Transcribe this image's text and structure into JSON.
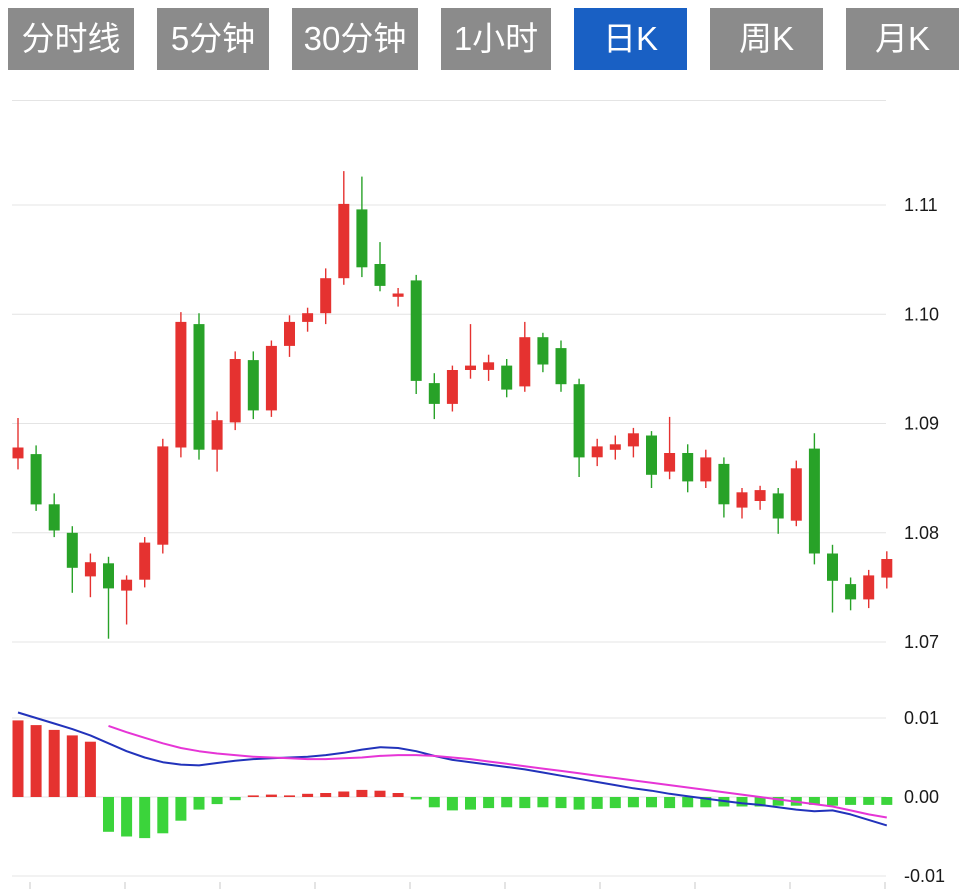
{
  "tabs": [
    {
      "label": "分时线",
      "active": false
    },
    {
      "label": "5分钟",
      "active": false
    },
    {
      "label": "30分钟",
      "active": false
    },
    {
      "label": "1小时",
      "active": false
    },
    {
      "label": "日K",
      "active": true
    },
    {
      "label": "周K",
      "active": false
    },
    {
      "label": "月K",
      "active": false
    }
  ],
  "colors": {
    "up": "#e53230",
    "down": "#28a228",
    "hist_up": "#e53230",
    "hist_down": "#3bd43b",
    "dif_line": "#2233bb",
    "dea_line": "#e635d6",
    "grid": "#e4e4e4",
    "axis_text": "#1a1a1a",
    "tab_bg": "#8b8b8b",
    "tab_active_bg": "#1960c4"
  },
  "chart_data": {
    "type": "candlestick",
    "legend_position": "none",
    "grid": true,
    "y_axis": {
      "labels": [
        "1.11",
        "1.10",
        "1.09",
        "1.08",
        "1.07"
      ],
      "ylim": [
        1.067,
        1.115
      ]
    },
    "candles": [
      [
        1.0868,
        1.0905,
        1.0858,
        1.0878
      ],
      [
        1.0872,
        1.088,
        1.082,
        1.0826
      ],
      [
        1.0826,
        1.0836,
        1.0796,
        1.0802
      ],
      [
        1.08,
        1.0806,
        1.0745,
        1.0768
      ],
      [
        1.076,
        1.0781,
        1.0741,
        1.0773
      ],
      [
        1.0772,
        1.0778,
        1.0703,
        1.0749
      ],
      [
        1.0747,
        1.0761,
        1.0716,
        1.0757
      ],
      [
        1.0757,
        1.0796,
        1.075,
        1.0791
      ],
      [
        1.0789,
        1.0886,
        1.0781,
        1.0879
      ],
      [
        1.0878,
        1.1002,
        1.0869,
        1.0993
      ],
      [
        1.0991,
        1.1001,
        1.0867,
        1.0876
      ],
      [
        1.0876,
        1.0911,
        1.0856,
        1.0903
      ],
      [
        1.0901,
        1.0966,
        1.0894,
        1.0959
      ],
      [
        1.0958,
        1.0966,
        1.0904,
        1.0912
      ],
      [
        1.0912,
        1.0976,
        1.0906,
        1.0971
      ],
      [
        1.0971,
        1.0999,
        1.0961,
        1.0993
      ],
      [
        1.0993,
        1.1006,
        1.0984,
        1.1001
      ],
      [
        1.1001,
        1.1042,
        1.0991,
        1.1033
      ],
      [
        1.1033,
        1.1131,
        1.1027,
        1.1101
      ],
      [
        1.1096,
        1.1126,
        1.1034,
        1.1043
      ],
      [
        1.1046,
        1.1066,
        1.1021,
        1.1026
      ],
      [
        1.1016,
        1.1024,
        1.1007,
        1.1019
      ],
      [
        1.1031,
        1.1036,
        1.0927,
        1.0939
      ],
      [
        1.0937,
        1.0946,
        1.0904,
        1.0918
      ],
      [
        1.0918,
        1.0953,
        1.0911,
        1.0949
      ],
      [
        1.0949,
        1.0991,
        1.0941,
        1.0953
      ],
      [
        1.0949,
        1.0963,
        1.0939,
        1.0956
      ],
      [
        1.0953,
        1.0959,
        1.0924,
        1.0931
      ],
      [
        1.0934,
        1.0993,
        1.0929,
        1.0979
      ],
      [
        1.0979,
        1.0983,
        1.0947,
        1.0954
      ],
      [
        1.0969,
        1.0976,
        1.0929,
        1.0936
      ],
      [
        1.0936,
        1.0941,
        1.0851,
        1.0869
      ],
      [
        1.0869,
        1.0886,
        1.0861,
        1.0879
      ],
      [
        1.0876,
        1.0889,
        1.0867,
        1.0881
      ],
      [
        1.0879,
        1.0896,
        1.0869,
        1.0891
      ],
      [
        1.0889,
        1.0893,
        1.0841,
        1.0853
      ],
      [
        1.0856,
        1.0906,
        1.0849,
        1.0873
      ],
      [
        1.0873,
        1.0881,
        1.0837,
        1.0847
      ],
      [
        1.0847,
        1.0876,
        1.0841,
        1.0869
      ],
      [
        1.0863,
        1.0869,
        1.0814,
        1.0826
      ],
      [
        1.0823,
        1.0841,
        1.0813,
        1.0837
      ],
      [
        1.0829,
        1.0843,
        1.0821,
        1.0839
      ],
      [
        1.0836,
        1.0841,
        1.0799,
        1.0813
      ],
      [
        1.0811,
        1.0866,
        1.0806,
        1.0859
      ],
      [
        1.0877,
        1.0891,
        1.0771,
        1.0781
      ],
      [
        1.0781,
        1.0789,
        1.0727,
        1.0756
      ],
      [
        1.0753,
        1.0759,
        1.0729,
        1.0739
      ],
      [
        1.0739,
        1.0766,
        1.0731,
        1.0761
      ],
      [
        1.0759,
        1.0783,
        1.0749,
        1.0776
      ]
    ],
    "macd": {
      "y_axis": {
        "labels": [
          "0.01",
          "0.00",
          "-0.01"
        ],
        "ylim": [
          -0.012,
          0.012
        ]
      },
      "histogram": [
        0.0097,
        0.0091,
        0.0085,
        0.0078,
        0.007,
        -0.0044,
        -0.005,
        -0.0052,
        -0.0046,
        -0.003,
        -0.0016,
        -0.0009,
        -0.0004,
        0.0002,
        0.0003,
        0.0002,
        0.0004,
        0.0005,
        0.0007,
        0.0009,
        0.0008,
        0.0005,
        -0.0003,
        -0.0013,
        -0.0017,
        -0.0016,
        -0.0014,
        -0.0013,
        -0.0014,
        -0.0013,
        -0.0014,
        -0.0016,
        -0.0015,
        -0.0014,
        -0.0013,
        -0.0013,
        -0.0014,
        -0.0013,
        -0.0013,
        -0.0012,
        -0.0012,
        -0.0012,
        -0.0011,
        -0.0011,
        -0.001,
        -0.0011,
        -0.001,
        -0.001,
        -0.001
      ],
      "dif": [
        0.0107,
        0.01,
        0.0093,
        0.0086,
        0.0078,
        0.0068,
        0.0058,
        0.005,
        0.0044,
        0.0041,
        0.004,
        0.0043,
        0.0046,
        0.0048,
        0.0049,
        0.005,
        0.0051,
        0.0053,
        0.0056,
        0.006,
        0.0063,
        0.0062,
        0.0058,
        0.0052,
        0.0047,
        0.0044,
        0.0041,
        0.0038,
        0.0035,
        0.0031,
        0.0027,
        0.0023,
        0.0019,
        0.0015,
        0.0011,
        0.0008,
        0.0004,
        0.0001,
        -0.0002,
        -0.0005,
        -0.0008,
        -0.001,
        -0.0013,
        -0.0016,
        -0.0018,
        -0.0017,
        -0.0022,
        -0.0029,
        -0.0036
      ],
      "dea": [
        null,
        null,
        null,
        null,
        null,
        0.009,
        0.0082,
        0.0075,
        0.0068,
        0.0062,
        0.0058,
        0.0055,
        0.0053,
        0.0051,
        0.005,
        0.0049,
        0.0048,
        0.0048,
        0.0049,
        0.005,
        0.0052,
        0.0053,
        0.0053,
        0.0052,
        0.005,
        0.0048,
        0.0045,
        0.0042,
        0.0039,
        0.0036,
        0.0033,
        0.003,
        0.0027,
        0.0024,
        0.0021,
        0.0018,
        0.0015,
        0.0012,
        0.0009,
        0.0006,
        0.0003,
        0.0,
        -0.0003,
        -0.0006,
        -0.0009,
        -0.0012,
        -0.0017,
        -0.0022,
        -0.0026
      ]
    }
  }
}
